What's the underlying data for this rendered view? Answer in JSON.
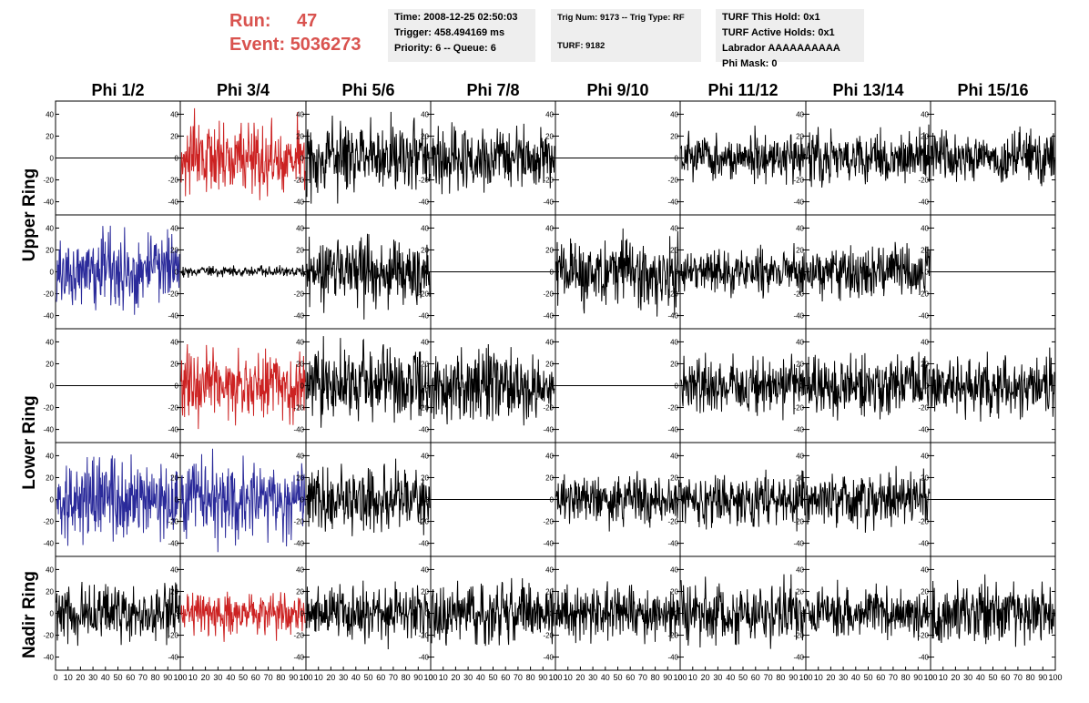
{
  "header": {
    "run_label": "Run:",
    "run_value": "47",
    "event_label": "Event:",
    "event_value": "5036273",
    "time_line": "Time: 2008-12-25 02:50:03",
    "trigger_line": "Trigger: 458.494169 ms",
    "priority_line": "Priority: 6 -- Queue: 6",
    "trig_line": "Trig Num: 9173 -- Trig Type: RF",
    "turf_line": "TURF: 9182",
    "turf_hold_line": "TURF This Hold: 0x1",
    "turf_active_line": "TURF Active Holds: 0x1",
    "labrador_line": "Labrador AAAAAAAAAA",
    "phimask_line": "Phi Mask: 0"
  },
  "chart_data": {
    "type": "line",
    "columns": [
      "Phi 1/2",
      "Phi 3/4",
      "Phi 5/6",
      "Phi 7/8",
      "Phi 9/10",
      "Phi 11/12",
      "Phi 13/14",
      "Phi 15/16"
    ],
    "rows": [
      "Upper Ring",
      "Upper Ring",
      "Lower Ring",
      "Lower Ring",
      "Nadir Ring"
    ],
    "row_labels": [
      "Upper Ring",
      "Lower Ring",
      "Nadir Ring"
    ],
    "y_ticks": [
      "40",
      "20",
      "0",
      "-20",
      "-40"
    ],
    "x_ticks": [
      "0",
      "10",
      "20",
      "30",
      "40",
      "50",
      "60",
      "70",
      "80",
      "90",
      "100"
    ],
    "xlim": [
      0,
      100
    ],
    "ylim": [
      -52,
      52
    ],
    "grid": false,
    "colors": {
      "black": "#000000",
      "red": "#cc2222",
      "blue": "#2a2a9a"
    },
    "panels": [
      [
        {
          "mode": "flat",
          "color": "black"
        },
        {
          "mode": "noise",
          "amp": 20,
          "color": "red"
        },
        {
          "mode": "noise",
          "amp": 19,
          "color": "black"
        },
        {
          "mode": "noise",
          "amp": 17,
          "color": "black"
        },
        {
          "mode": "flat",
          "color": "black"
        },
        {
          "mode": "noise",
          "amp": 13,
          "color": "black"
        },
        {
          "mode": "noise",
          "amp": 16,
          "color": "black"
        },
        {
          "mode": "noise",
          "amp": 15,
          "color": "black"
        }
      ],
      [
        {
          "mode": "noise",
          "amp": 21,
          "color": "blue"
        },
        {
          "mode": "noise",
          "amp": 3,
          "color": "black"
        },
        {
          "mode": "noise",
          "amp": 19,
          "color": "black"
        },
        {
          "mode": "flat",
          "color": "black"
        },
        {
          "mode": "noise",
          "amp": 20,
          "color": "black"
        },
        {
          "mode": "noise",
          "amp": 13,
          "color": "black"
        },
        {
          "mode": "noise",
          "amp": 15,
          "color": "black"
        },
        {
          "mode": "flat",
          "color": "black"
        }
      ],
      [
        {
          "mode": "flat",
          "color": "black"
        },
        {
          "mode": "noise",
          "amp": 19,
          "color": "red"
        },
        {
          "mode": "noise",
          "amp": 22,
          "color": "black"
        },
        {
          "mode": "noise",
          "amp": 19,
          "color": "black"
        },
        {
          "mode": "flat",
          "color": "black"
        },
        {
          "mode": "noise",
          "amp": 15,
          "color": "black"
        },
        {
          "mode": "noise",
          "amp": 17,
          "color": "black"
        },
        {
          "mode": "noise",
          "amp": 18,
          "color": "black"
        }
      ],
      [
        {
          "mode": "noise",
          "amp": 22,
          "color": "blue"
        },
        {
          "mode": "noise",
          "amp": 22,
          "color": "blue"
        },
        {
          "mode": "noise",
          "amp": 18,
          "color": "black"
        },
        {
          "mode": "flat",
          "color": "black"
        },
        {
          "mode": "noise",
          "amp": 14,
          "color": "black"
        },
        {
          "mode": "noise",
          "amp": 15,
          "color": "black"
        },
        {
          "mode": "noise",
          "amp": 15,
          "color": "black"
        },
        {
          "mode": "flat",
          "color": "black"
        }
      ],
      [
        {
          "mode": "noise",
          "amp": 15,
          "color": "black"
        },
        {
          "mode": "noise",
          "amp": 13,
          "color": "red"
        },
        {
          "mode": "noise",
          "amp": 16,
          "color": "black"
        },
        {
          "mode": "noise",
          "amp": 17,
          "color": "black"
        },
        {
          "mode": "noise",
          "amp": 14,
          "color": "black"
        },
        {
          "mode": "noise",
          "amp": 18,
          "color": "black"
        },
        {
          "mode": "noise",
          "amp": 14,
          "color": "black"
        },
        {
          "mode": "noise",
          "amp": 17,
          "color": "black"
        }
      ]
    ]
  }
}
